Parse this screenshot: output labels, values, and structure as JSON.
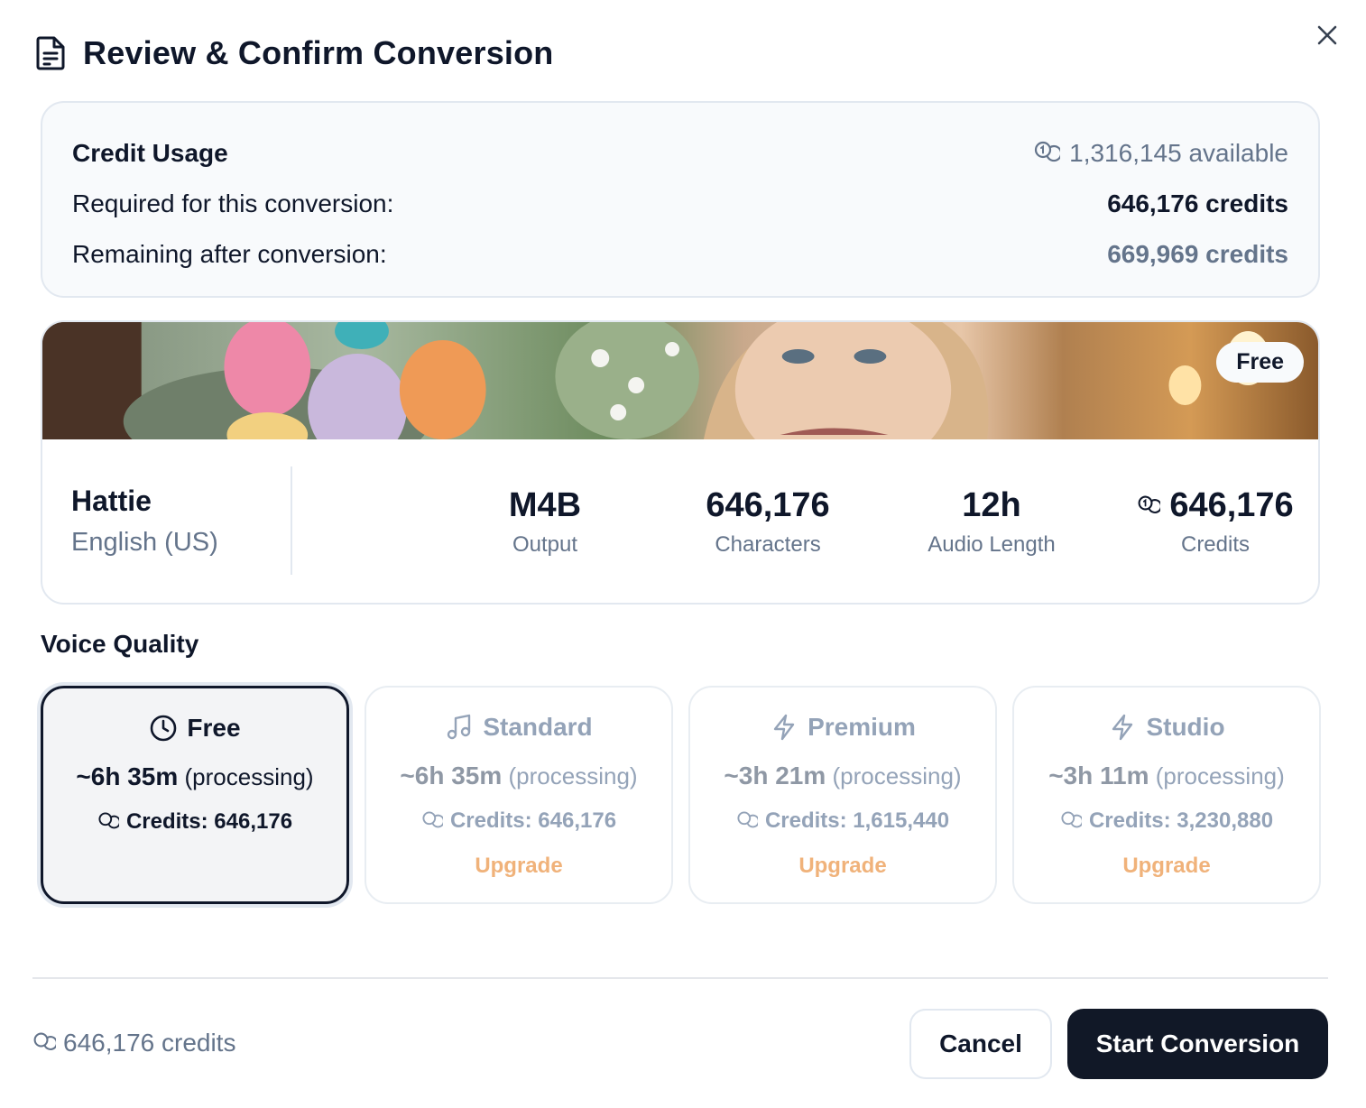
{
  "dialog": {
    "title": "Review & Confirm Conversion"
  },
  "credit_usage": {
    "heading": "Credit Usage",
    "available": "1,316,145 available",
    "required_label": "Required for this conversion:",
    "required_value": "646,176 credits",
    "remaining_label": "Remaining after conversion:",
    "remaining_value": "669,969 credits"
  },
  "voice": {
    "badge": "Free",
    "name": "Hattie",
    "language": "English (US)",
    "stats": [
      {
        "value": "M4B",
        "label": "Output"
      },
      {
        "value": "646,176",
        "label": "Characters"
      },
      {
        "value": "12h",
        "label": "Audio Length"
      },
      {
        "value": "646,176",
        "label": "Credits"
      }
    ]
  },
  "voice_quality": {
    "title": "Voice Quality",
    "options": [
      {
        "name": "Free",
        "icon": "clock-icon",
        "time": "~6h 35m",
        "time_suffix": "(processing)",
        "credits": "Credits: 646,176",
        "upgrade": "",
        "selected": true
      },
      {
        "name": "Standard",
        "icon": "music-note-icon",
        "time": "~6h 35m",
        "time_suffix": "(processing)",
        "credits": "Credits: 646,176",
        "upgrade": "Upgrade",
        "selected": false
      },
      {
        "name": "Premium",
        "icon": "lightning-icon",
        "time": "~3h 21m",
        "time_suffix": "(processing)",
        "credits": "Credits: 1,615,440",
        "upgrade": "Upgrade",
        "selected": false
      },
      {
        "name": "Studio",
        "icon": "lightning-icon",
        "time": "~3h 11m",
        "time_suffix": "(processing)",
        "credits": "Credits: 3,230,880",
        "upgrade": "Upgrade",
        "selected": false
      }
    ]
  },
  "footer": {
    "total_credits": "646,176 credits",
    "cancel_label": "Cancel",
    "start_label": "Start Conversion"
  },
  "colors": {
    "primary_dark": "#111827",
    "muted_text": "#64748b",
    "upgrade_accent": "#f0b27a",
    "panel_bg": "#f8fafc",
    "border": "#e2e8f0"
  }
}
